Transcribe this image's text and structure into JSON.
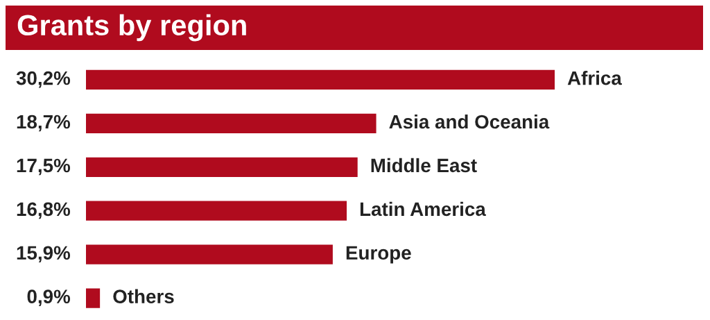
{
  "chart_data": {
    "type": "bar",
    "orientation": "horizontal",
    "title": "Grants by region",
    "categories": [
      "Africa",
      "Asia and Oceania",
      "Middle East",
      "Latin America",
      "Europe",
      "Others"
    ],
    "values": [
      30.2,
      18.7,
      17.5,
      16.8,
      15.9,
      0.9
    ],
    "value_labels": [
      "30,2%",
      "18,7%",
      "17,5%",
      "16,8%",
      "15,9%",
      "0,9%"
    ],
    "color": "#b00b1e"
  }
}
